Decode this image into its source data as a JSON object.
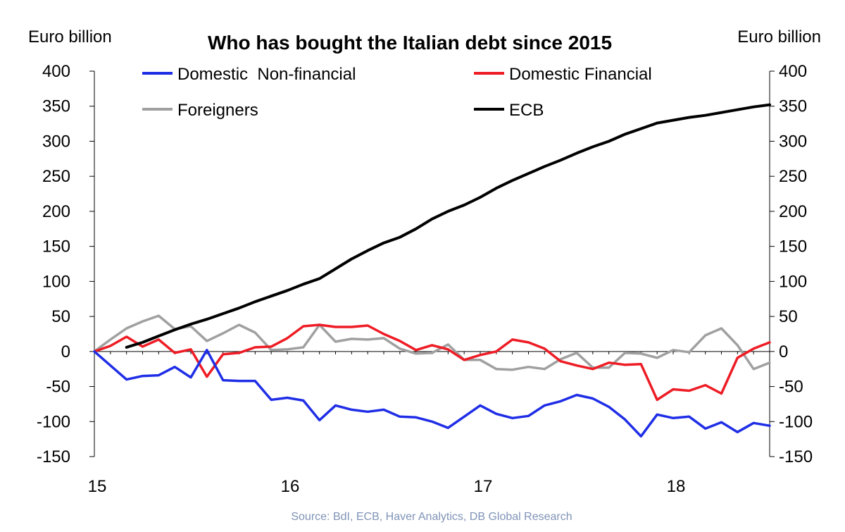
{
  "chart_data": {
    "type": "line",
    "title": "Who has bought the Italian debt since 2015",
    "ylabel_left": "Euro billion",
    "ylabel_right": "Euro billion",
    "source": "Source: BdI, ECB, Haver Analytics, DB Global Research",
    "ylim": [
      -150,
      400
    ],
    "yticks": [
      400,
      350,
      300,
      250,
      200,
      150,
      100,
      50,
      0,
      -50,
      -100,
      -150
    ],
    "ytick_labels": [
      "400",
      "350",
      "300",
      "250",
      "200",
      "150",
      "100",
      "50",
      "0",
      "-50",
      "-100",
      "-150"
    ],
    "xlim": [
      0,
      42
    ],
    "xticks": [
      0,
      12,
      24,
      36
    ],
    "xtick_labels": [
      "15",
      "16",
      "17",
      "18"
    ],
    "grid": false,
    "legend_position": "top",
    "series": [
      {
        "name": "Domestic  Non-financial",
        "color": "#1f2ee6",
        "x": [
          0,
          1,
          2,
          3,
          4,
          5,
          6,
          7,
          8,
          9,
          10,
          11,
          12,
          13,
          14,
          15,
          16,
          17,
          18,
          19,
          20,
          21,
          22,
          23,
          24,
          25,
          26,
          27,
          28,
          29,
          30,
          31,
          32,
          33,
          34,
          35,
          36,
          37,
          38,
          39,
          40,
          41,
          42
        ],
        "values": [
          0,
          -20,
          -40,
          -35,
          -34,
          -22,
          -37,
          2,
          -41,
          -42,
          -42,
          -69,
          -66,
          -70,
          -98,
          -77,
          -83,
          -86,
          -83,
          -93,
          -94,
          -100,
          -109,
          -93,
          -77,
          -89,
          -95,
          -92,
          -77,
          -71,
          -62,
          -67,
          -79,
          -97,
          -121,
          -90,
          -95,
          -93,
          -110,
          -101,
          -115,
          -102,
          -106
        ]
      },
      {
        "name": "Domestic Financial",
        "color": "#ee1c25",
        "x": [
          0,
          1,
          2,
          3,
          4,
          5,
          6,
          7,
          8,
          9,
          10,
          11,
          12,
          13,
          14,
          15,
          16,
          17,
          18,
          19,
          20,
          21,
          22,
          23,
          24,
          25,
          26,
          27,
          28,
          29,
          30,
          31,
          32,
          33,
          34,
          35,
          36,
          37,
          38,
          39,
          40,
          41,
          42
        ],
        "values": [
          0,
          8,
          21,
          7,
          17,
          -2,
          3,
          -36,
          -4,
          -2,
          6,
          7,
          19,
          36,
          38,
          35,
          35,
          37,
          25,
          15,
          2,
          9,
          3,
          -12,
          -5,
          0,
          17,
          13,
          4,
          -14,
          -20,
          -25,
          -16,
          -19,
          -18,
          -69,
          -54,
          -56,
          -48,
          -60,
          -9,
          4,
          13
        ]
      },
      {
        "name": "Foreigners",
        "color": "#a0a0a0",
        "x": [
          0,
          1,
          2,
          3,
          4,
          5,
          6,
          7,
          8,
          9,
          10,
          11,
          12,
          13,
          14,
          15,
          16,
          17,
          18,
          19,
          20,
          21,
          22,
          23,
          24,
          25,
          26,
          27,
          28,
          29,
          30,
          31,
          32,
          33,
          34,
          35,
          36,
          37,
          38,
          39,
          40,
          41,
          42
        ],
        "values": [
          0,
          17,
          33,
          43,
          51,
          32,
          36,
          15,
          26,
          38,
          27,
          2,
          3,
          6,
          38,
          14,
          18,
          17,
          19,
          4,
          -3,
          -2,
          10,
          -12,
          -12,
          -25,
          -26,
          -22,
          -25,
          -11,
          -2,
          -23,
          -23,
          -2,
          -3,
          -9,
          2,
          -1,
          23,
          33,
          9,
          -25,
          -16
        ]
      },
      {
        "name": "ECB",
        "color": "#000000",
        "x": [
          2,
          3,
          4,
          5,
          6,
          7,
          8,
          9,
          10,
          11,
          12,
          13,
          14,
          15,
          16,
          17,
          18,
          19,
          20,
          21,
          22,
          23,
          24,
          25,
          26,
          27,
          28,
          29,
          30,
          31,
          32,
          33,
          34,
          35,
          36,
          37,
          38,
          39,
          40,
          41,
          42
        ],
        "values": [
          6,
          13,
          22,
          31,
          39,
          46,
          54,
          62,
          71,
          79,
          87,
          96,
          104,
          118,
          132,
          144,
          155,
          163,
          175,
          189,
          200,
          209,
          220,
          233,
          244,
          254,
          264,
          273,
          283,
          292,
          300,
          310,
          318,
          326,
          330,
          334,
          337,
          341,
          345,
          349,
          352
        ]
      }
    ]
  }
}
